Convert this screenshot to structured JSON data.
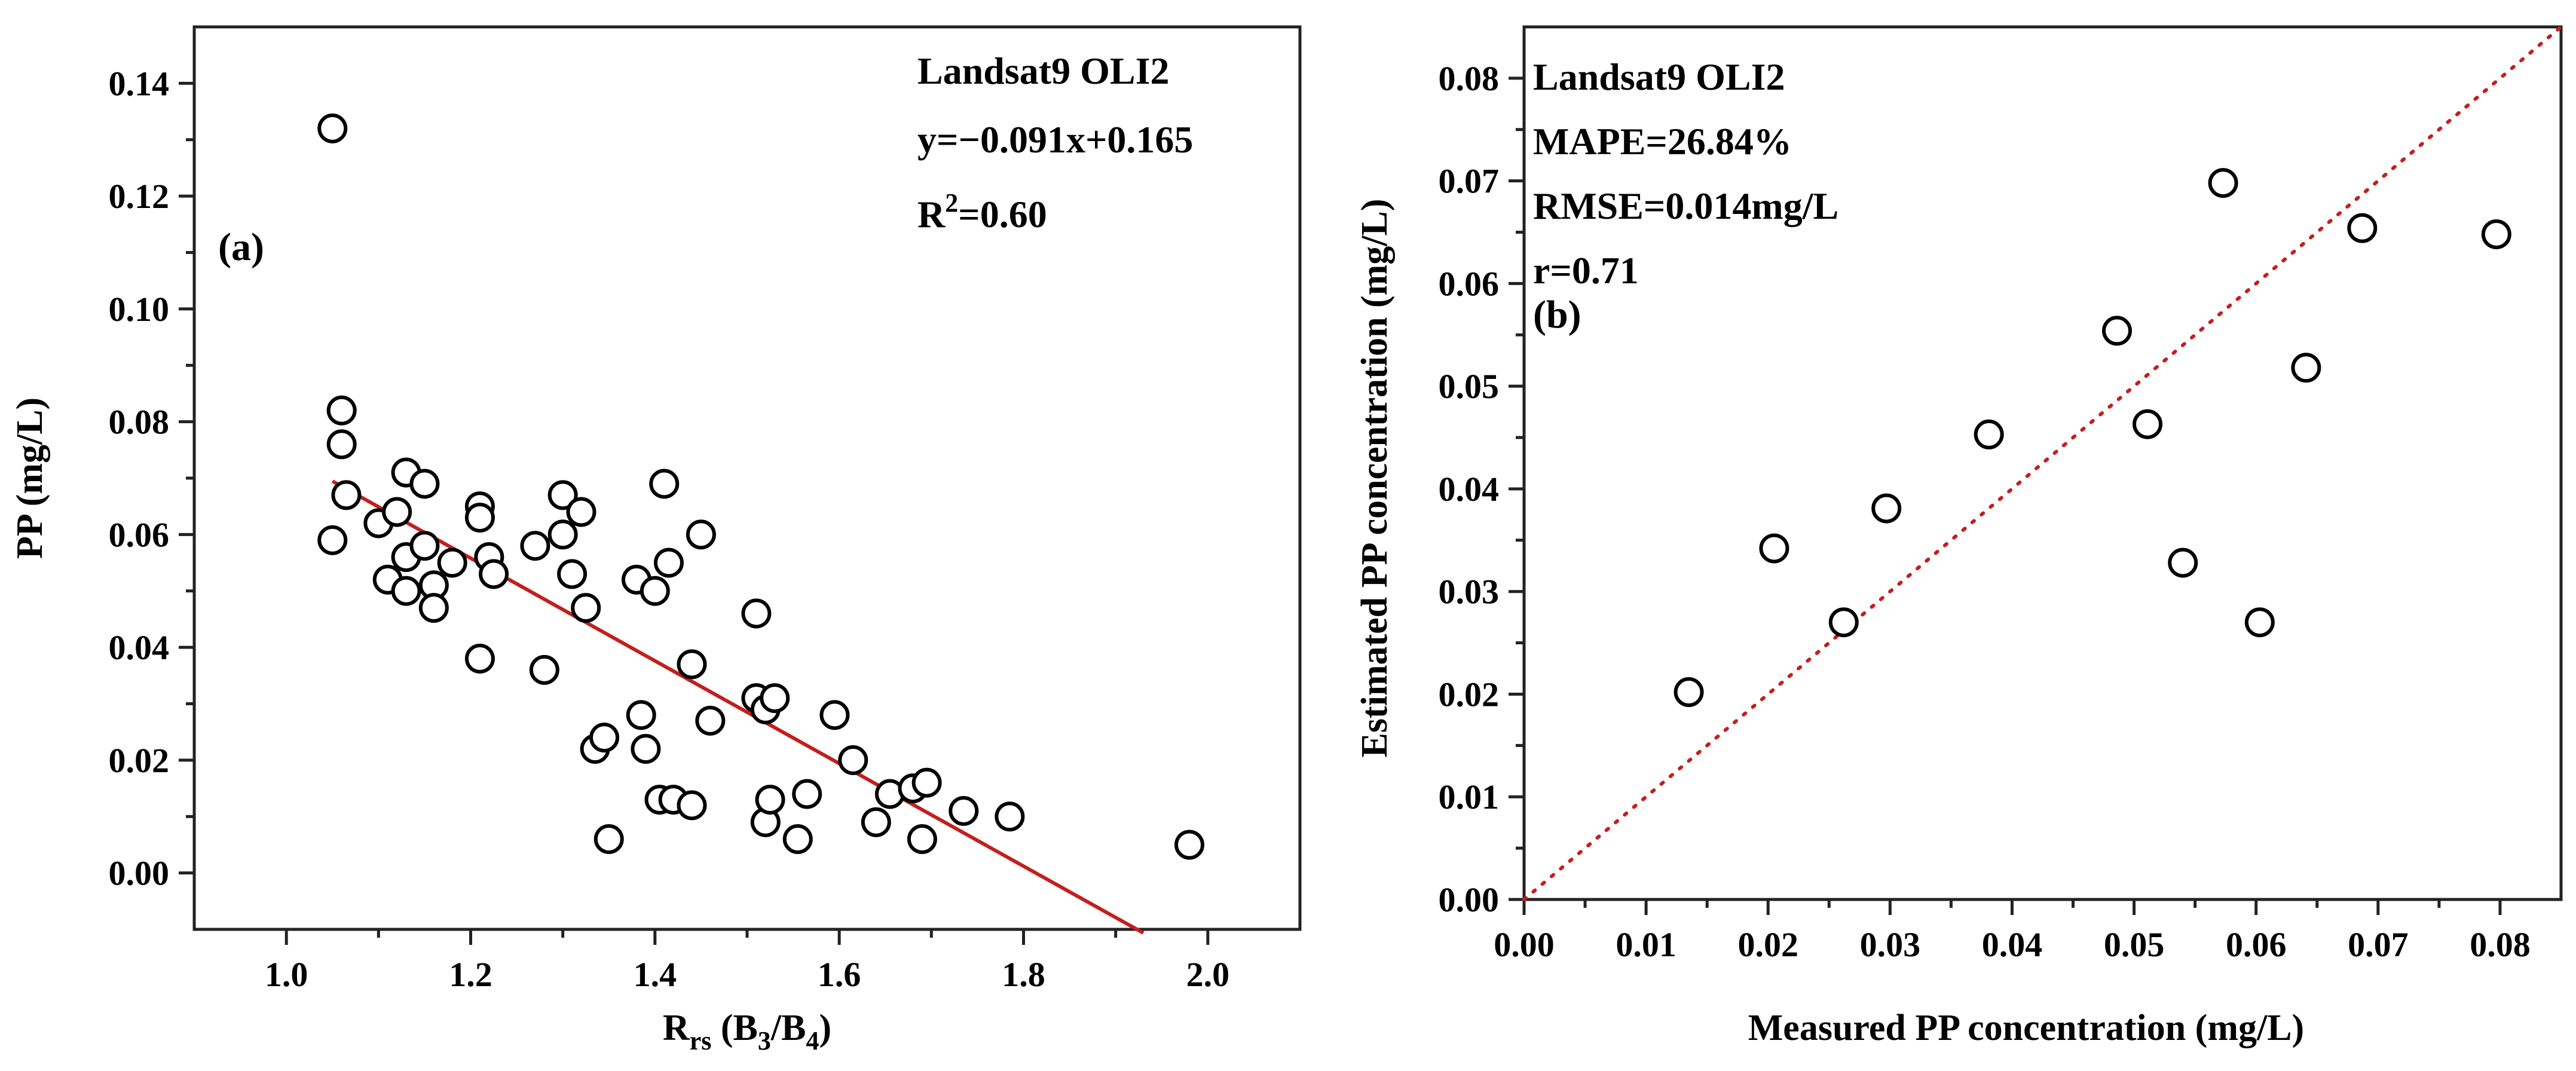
{
  "chart_data": [
    {
      "type": "scatter",
      "panel_label": "(a)",
      "title": "",
      "xlabel": {
        "main": "R",
        "sub": "rs",
        "rest_1": " (B",
        "sub_1": "3",
        "rest_2": "/B",
        "sub_2": "4",
        "rest_3": ")"
      },
      "ylabel": "PP (mg/L)",
      "xlim": [
        0.9,
        2.1
      ],
      "ylim": [
        -0.01,
        0.15
      ],
      "xticks": [
        1.0,
        1.2,
        1.4,
        1.6,
        1.8,
        2.0
      ],
      "xtick_labels": [
        "1.0",
        "1.2",
        "1.4",
        "1.6",
        "1.8",
        "2.0"
      ],
      "yticks": [
        0.0,
        0.02,
        0.04,
        0.06,
        0.08,
        0.1,
        0.12,
        0.14
      ],
      "ytick_labels": [
        "0.00",
        "0.02",
        "0.04",
        "0.06",
        "0.08",
        "0.10",
        "0.12",
        "0.14"
      ],
      "annotations": {
        "sensor": "Landsat9 OLI2",
        "equation": "y=−0.091x+0.165",
        "r2_prefix": "R",
        "r2_sup": "2",
        "r2_value": "=0.60"
      },
      "fit_line": {
        "slope": -0.091,
        "intercept": 0.165,
        "x_range": [
          1.05,
          1.93
        ],
        "color": "#c41e1e"
      },
      "points": [
        [
          1.05,
          0.132
        ],
        [
          1.06,
          0.082
        ],
        [
          1.06,
          0.076
        ],
        [
          1.065,
          0.067
        ],
        [
          1.05,
          0.059
        ],
        [
          1.1,
          0.062
        ],
        [
          1.11,
          0.052
        ],
        [
          1.12,
          0.064
        ],
        [
          1.13,
          0.071
        ],
        [
          1.13,
          0.056
        ],
        [
          1.13,
          0.05
        ],
        [
          1.15,
          0.069
        ],
        [
          1.15,
          0.058
        ],
        [
          1.16,
          0.051
        ],
        [
          1.16,
          0.047
        ],
        [
          1.18,
          0.055
        ],
        [
          1.21,
          0.065
        ],
        [
          1.21,
          0.063
        ],
        [
          1.21,
          0.038
        ],
        [
          1.22,
          0.056
        ],
        [
          1.225,
          0.053
        ],
        [
          1.27,
          0.058
        ],
        [
          1.28,
          0.036
        ],
        [
          1.3,
          0.067
        ],
        [
          1.3,
          0.06
        ],
        [
          1.31,
          0.053
        ],
        [
          1.32,
          0.064
        ],
        [
          1.325,
          0.047
        ],
        [
          1.335,
          0.022
        ],
        [
          1.345,
          0.024
        ],
        [
          1.35,
          0.006
        ],
        [
          1.38,
          0.052
        ],
        [
          1.385,
          0.028
        ],
        [
          1.39,
          0.022
        ],
        [
          1.4,
          0.05
        ],
        [
          1.41,
          0.069
        ],
        [
          1.415,
          0.055
        ],
        [
          1.405,
          0.013
        ],
        [
          1.42,
          0.013
        ],
        [
          1.44,
          0.037
        ],
        [
          1.44,
          0.012
        ],
        [
          1.45,
          0.06
        ],
        [
          1.46,
          0.027
        ],
        [
          1.51,
          0.046
        ],
        [
          1.51,
          0.031
        ],
        [
          1.52,
          0.029
        ],
        [
          1.52,
          0.009
        ],
        [
          1.525,
          0.013
        ],
        [
          1.53,
          0.031
        ],
        [
          1.555,
          0.006
        ],
        [
          1.565,
          0.014
        ],
        [
          1.595,
          0.028
        ],
        [
          1.615,
          0.02
        ],
        [
          1.64,
          0.009
        ],
        [
          1.655,
          0.014
        ],
        [
          1.68,
          0.015
        ],
        [
          1.695,
          0.016
        ],
        [
          1.69,
          0.006
        ],
        [
          1.735,
          0.011
        ],
        [
          1.785,
          0.01
        ],
        [
          1.98,
          0.005
        ]
      ]
    },
    {
      "type": "scatter",
      "panel_label": "(b)",
      "title": "",
      "xlabel": "Measured PP concentration (mg/L)",
      "ylabel": "Estimated PP concentration (mg/L)",
      "xlim": [
        0.0,
        0.085
      ],
      "ylim": [
        0.0,
        0.085
      ],
      "xticks": [
        0.0,
        0.01,
        0.02,
        0.03,
        0.04,
        0.05,
        0.06,
        0.07,
        0.08
      ],
      "xtick_labels": [
        "0.00",
        "0.01",
        "0.02",
        "0.03",
        "0.04",
        "0.05",
        "0.06",
        "0.07",
        "0.08"
      ],
      "yticks": [
        0.0,
        0.01,
        0.02,
        0.03,
        0.04,
        0.05,
        0.06,
        0.07,
        0.08
      ],
      "ytick_labels": [
        "0.00",
        "0.01",
        "0.02",
        "0.03",
        "0.04",
        "0.05",
        "0.06",
        "0.07",
        "0.08"
      ],
      "annotations": {
        "sensor": "Landsat9 OLI2",
        "mape": "MAPE=26.84%",
        "rmse": "RMSE=0.014mg/L",
        "r": "r=0.71"
      },
      "reference_line": {
        "type": "1:1",
        "style": "dotted",
        "color": "#c41e1e"
      },
      "points": [
        [
          0.0135,
          0.0202
        ],
        [
          0.0205,
          0.0342
        ],
        [
          0.0262,
          0.027
        ],
        [
          0.0297,
          0.0381
        ],
        [
          0.0381,
          0.0453
        ],
        [
          0.0486,
          0.0554
        ],
        [
          0.0511,
          0.0463
        ],
        [
          0.054,
          0.0328
        ],
        [
          0.0573,
          0.0698
        ],
        [
          0.0603,
          0.027
        ],
        [
          0.0641,
          0.0518
        ],
        [
          0.0687,
          0.0654
        ],
        [
          0.0797,
          0.0648
        ]
      ]
    }
  ]
}
